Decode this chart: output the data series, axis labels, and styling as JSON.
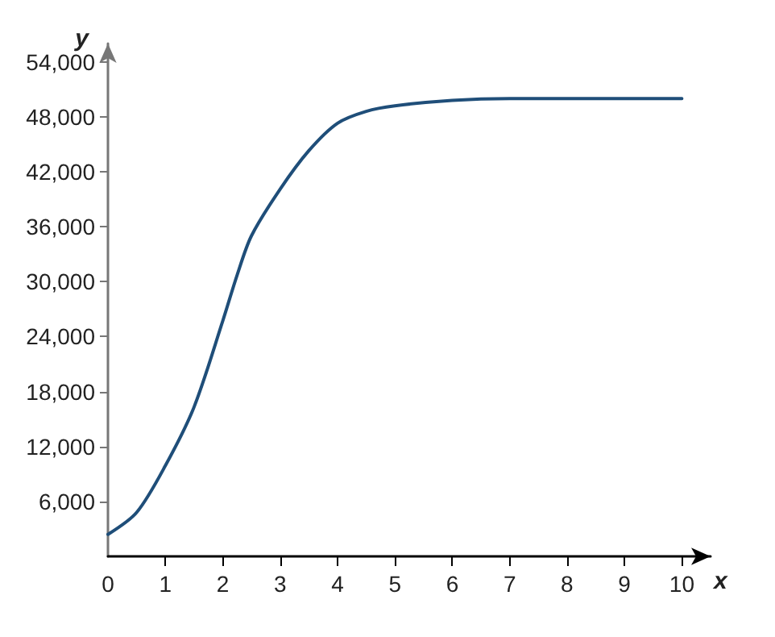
{
  "chart_data": {
    "type": "line",
    "xlabel": "x",
    "ylabel": "y",
    "x": [
      0,
      0.5,
      1,
      1.5,
      2,
      2.25,
      2.5,
      3,
      3.5,
      4,
      4.5,
      5,
      6,
      7,
      8,
      9,
      10
    ],
    "series": [
      {
        "color": "#1f4e79",
        "values": [
          2400,
          4800,
          9900,
          16300,
          25700,
          30700,
          35000,
          40100,
          44300,
          47300,
          48600,
          49200,
          49800,
          50000,
          50000,
          50000,
          50000
        ]
      }
    ],
    "xlim": [
      0,
      10.5
    ],
    "ylim": [
      0,
      56000
    ],
    "xticks": [
      {
        "value": 0,
        "label": "0"
      },
      1,
      2,
      3,
      4,
      5,
      6,
      7,
      8,
      9,
      10
    ],
    "yticks": [
      {
        "value": 6000,
        "label": "6,000"
      },
      {
        "value": 12000,
        "label": "12,000"
      },
      {
        "value": 18000,
        "label": "18,000"
      },
      {
        "value": 24000,
        "label": "24,000"
      },
      {
        "value": 30000,
        "label": "30,000"
      },
      {
        "value": 36000,
        "label": "36,000"
      },
      {
        "value": 42000,
        "label": "42,000"
      },
      {
        "value": 48000,
        "label": "48,000"
      },
      {
        "value": 54000,
        "label": "54,000"
      }
    ],
    "grid": false,
    "marker": "none",
    "line_style": "solid"
  }
}
